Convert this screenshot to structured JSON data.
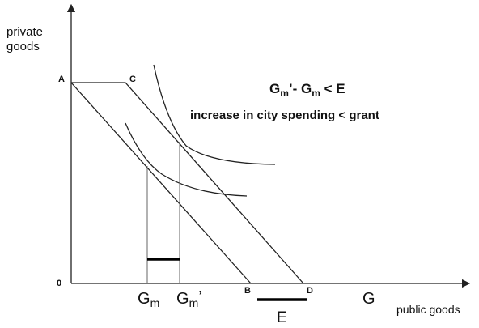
{
  "axes": {
    "y_label": [
      "private",
      "goods"
    ],
    "x_label": "public goods"
  },
  "points": {
    "a": "A",
    "c": "C",
    "origin": "0",
    "b": "B",
    "d": "D"
  },
  "x_marks": {
    "gm": {
      "main": "G",
      "sub": "m"
    },
    "gm_prime": {
      "main": "G",
      "sub": "m",
      "post": "’"
    },
    "g": "G",
    "e": "E"
  },
  "annotation": {
    "line1": {
      "part1": "G",
      "sub1": "m",
      "part2": "’- G",
      "sub2": "m",
      "part3": " < E"
    },
    "line2": "increase in city spending < grant"
  }
}
